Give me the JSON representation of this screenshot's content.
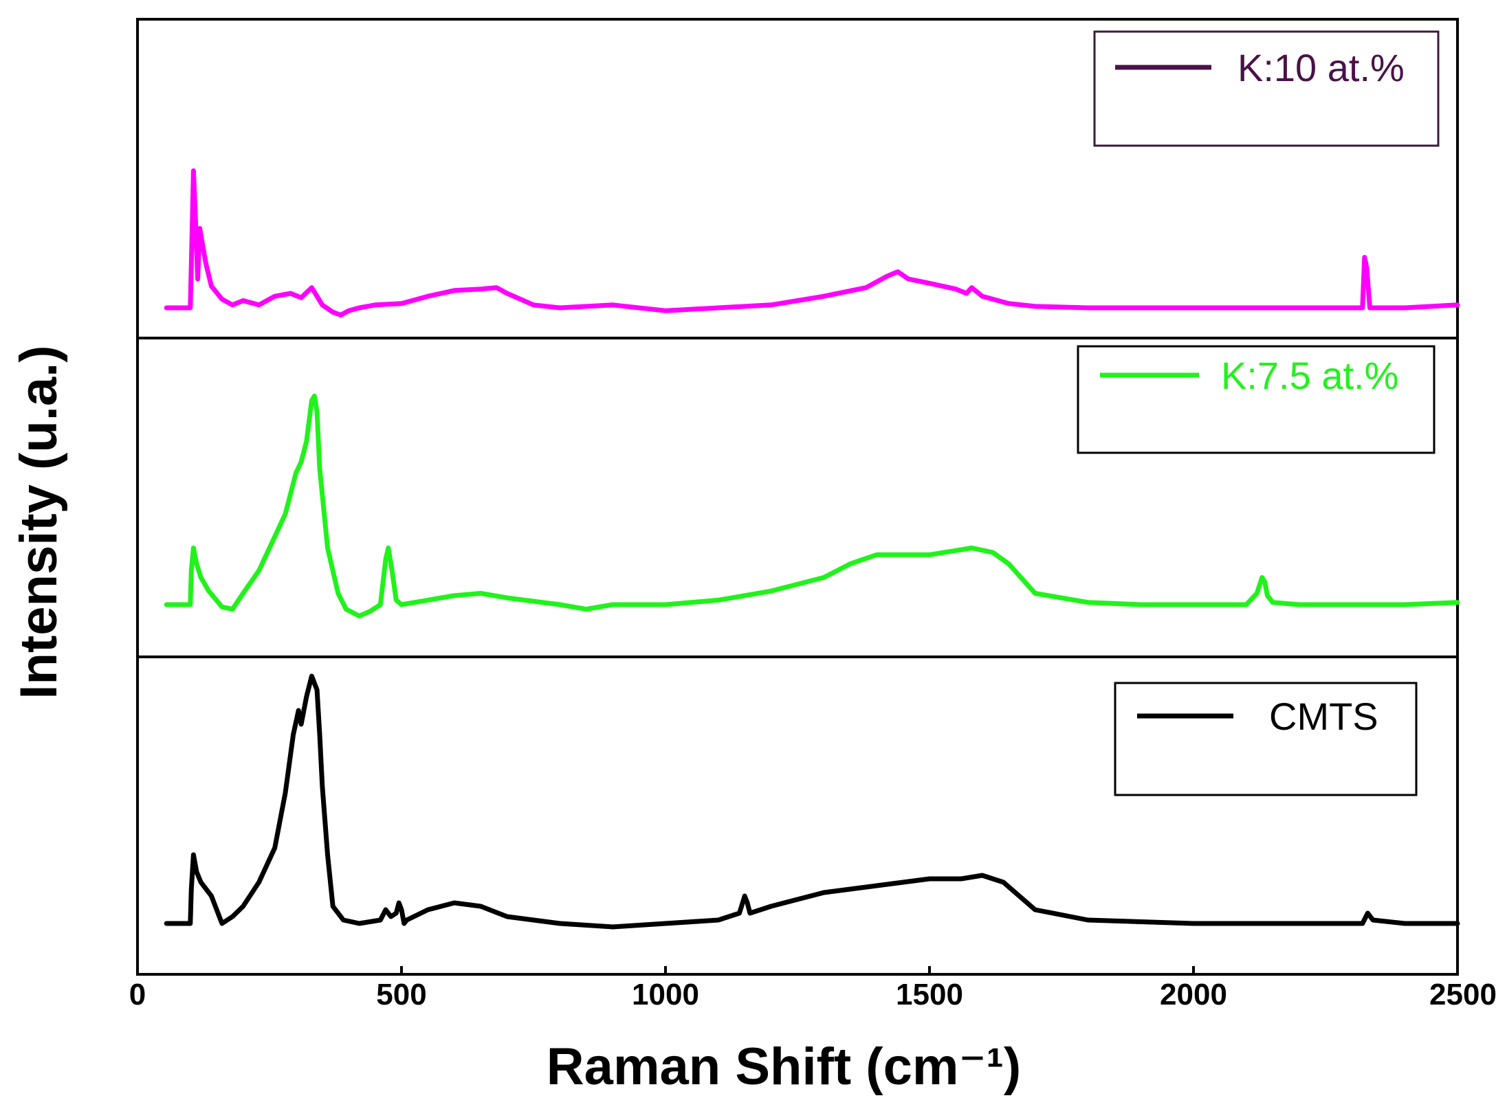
{
  "chart_data": {
    "type": "line",
    "layout": "stacked-panels",
    "xlabel": "Raman Shift (cm⁻¹)",
    "ylabel": "Intensity (u.a.)",
    "xlim": [
      0,
      2500
    ],
    "ylim": [
      0,
      1
    ],
    "xticks": [
      0,
      500,
      1000,
      1500,
      2000,
      2500
    ],
    "xtick_labels": [
      "0",
      "500",
      "1000",
      "1500",
      "2000",
      "2500"
    ],
    "grid": false,
    "series": [
      {
        "name": "K:10 at.%",
        "color": "#ff00ff",
        "legend_color": "#4a1248",
        "panel": "top",
        "legend_position": "top-right",
        "x": [
          55,
          100,
          102,
          106,
          110,
          114,
          118,
          125,
          130,
          140,
          160,
          180,
          200,
          230,
          260,
          290,
          310,
          330,
          350,
          370,
          385,
          400,
          420,
          450,
          500,
          550,
          600,
          650,
          680,
          700,
          750,
          800,
          900,
          1000,
          1100,
          1200,
          1300,
          1380,
          1420,
          1440,
          1460,
          1500,
          1550,
          1570,
          1580,
          1600,
          1650,
          1700,
          1800,
          2000,
          2200,
          2320,
          2324,
          2328,
          2334,
          2340,
          2400,
          2500
        ],
        "y": [
          0.0,
          0.0,
          0.3,
          0.95,
          0.6,
          0.2,
          0.55,
          0.4,
          0.3,
          0.15,
          0.06,
          0.02,
          0.05,
          0.02,
          0.08,
          0.1,
          0.07,
          0.14,
          0.02,
          -0.03,
          -0.05,
          -0.02,
          0.0,
          0.02,
          0.03,
          0.08,
          0.12,
          0.13,
          0.14,
          0.1,
          0.02,
          0.0,
          0.02,
          -0.02,
          0.0,
          0.02,
          0.08,
          0.14,
          0.22,
          0.25,
          0.2,
          0.17,
          0.13,
          0.1,
          0.14,
          0.08,
          0.03,
          0.01,
          0.0,
          0.0,
          0.0,
          0.0,
          0.35,
          0.28,
          0.0,
          0.0,
          0.0,
          0.02
        ]
      },
      {
        "name": "K:7.5 at.%",
        "color": "#21f21b",
        "legend_color": "#21f21b",
        "panel": "middle",
        "legend_position": "top-right",
        "x": [
          55,
          100,
          102,
          106,
          112,
          120,
          135,
          160,
          180,
          200,
          230,
          260,
          280,
          300,
          310,
          320,
          330,
          335,
          340,
          345,
          360,
          380,
          395,
          420,
          440,
          460,
          470,
          475,
          482,
          490,
          500,
          550,
          600,
          650,
          700,
          800,
          850,
          900,
          1000,
          1100,
          1200,
          1300,
          1350,
          1400,
          1500,
          1580,
          1620,
          1650,
          1700,
          1800,
          1900,
          2000,
          2100,
          2120,
          2130,
          2135,
          2140,
          2150,
          2200,
          2300,
          2400,
          2500
        ],
        "y": [
          0.0,
          0.0,
          0.15,
          0.25,
          0.18,
          0.12,
          0.06,
          -0.01,
          -0.02,
          0.05,
          0.15,
          0.3,
          0.4,
          0.58,
          0.63,
          0.72,
          0.9,
          0.92,
          0.85,
          0.6,
          0.25,
          0.05,
          -0.02,
          -0.05,
          -0.03,
          0.0,
          0.2,
          0.25,
          0.15,
          0.02,
          0.0,
          0.02,
          0.04,
          0.05,
          0.03,
          0.0,
          -0.02,
          0.0,
          0.0,
          0.02,
          0.06,
          0.12,
          0.18,
          0.22,
          0.22,
          0.25,
          0.23,
          0.18,
          0.05,
          0.01,
          0.0,
          0.0,
          0.0,
          0.05,
          0.12,
          0.1,
          0.04,
          0.01,
          0.0,
          0.0,
          0.0,
          0.01
        ]
      },
      {
        "name": "CMTS",
        "color": "#000000",
        "legend_color": "#000000",
        "panel": "bottom",
        "legend_position": "top-right",
        "x": [
          55,
          100,
          102,
          106,
          112,
          120,
          140,
          160,
          180,
          200,
          230,
          260,
          280,
          295,
          305,
          310,
          320,
          330,
          340,
          345,
          350,
          360,
          370,
          390,
          420,
          460,
          470,
          480,
          490,
          495,
          500,
          505,
          510,
          550,
          600,
          650,
          700,
          800,
          900,
          1000,
          1100,
          1140,
          1150,
          1155,
          1160,
          1200,
          1300,
          1400,
          1500,
          1560,
          1600,
          1640,
          1700,
          1800,
          2000,
          2200,
          2320,
          2330,
          2340,
          2400,
          2500
        ],
        "y": [
          0.0,
          0.0,
          0.1,
          0.2,
          0.15,
          0.12,
          0.08,
          0.0,
          0.02,
          0.05,
          0.12,
          0.22,
          0.38,
          0.55,
          0.62,
          0.58,
          0.66,
          0.72,
          0.68,
          0.55,
          0.4,
          0.2,
          0.05,
          0.01,
          0.0,
          0.01,
          0.04,
          0.02,
          0.03,
          0.06,
          0.04,
          0.0,
          0.01,
          0.04,
          0.06,
          0.05,
          0.02,
          0.0,
          -0.01,
          0.0,
          0.01,
          0.03,
          0.08,
          0.06,
          0.03,
          0.05,
          0.09,
          0.11,
          0.13,
          0.13,
          0.14,
          0.12,
          0.04,
          0.01,
          0.0,
          0.0,
          0.0,
          0.03,
          0.01,
          0.0,
          0.0
        ]
      }
    ]
  }
}
